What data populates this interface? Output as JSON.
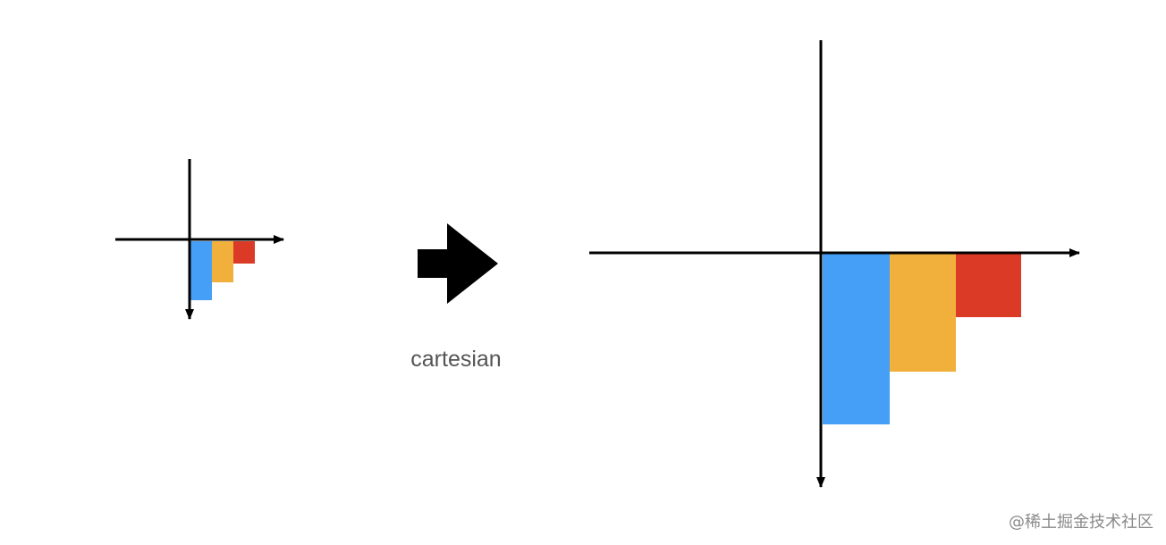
{
  "caption": "cartesian",
  "watermark": "@稀土掘金技术社区",
  "colors": {
    "axis": "#000000",
    "bar_blue": "#459ff7",
    "bar_orange": "#f1b03c",
    "bar_red": "#db3b26",
    "caption_text": "#555555"
  },
  "icons": {
    "transform_arrow": "arrow-right-icon"
  }
}
